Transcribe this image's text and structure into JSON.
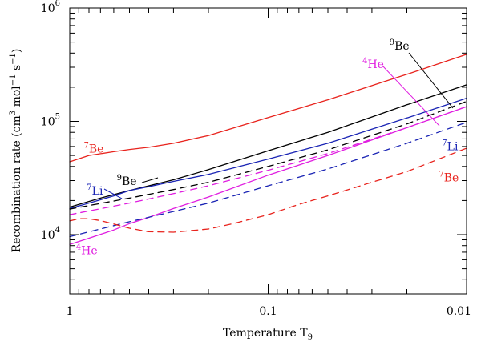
{
  "chart_data": {
    "type": "line",
    "title": "",
    "xlabel": "Temperature T",
    "xlabel_sub": "9",
    "ylabel": "Recombination rate (cm",
    "ylabel_parts": [
      "Recombination rate (cm",
      "3",
      " mol",
      "−1",
      " s",
      "−1",
      ")"
    ],
    "xscale": "log",
    "yscale": "log",
    "x_reversed": true,
    "xlim": [
      1,
      0.01
    ],
    "ylim": [
      3000,
      1000000
    ],
    "x_tick_labels": [
      "1",
      "0.1",
      "0.01"
    ],
    "y_tick_labels": [
      {
        "base": "10",
        "exp": "4"
      },
      {
        "base": "10",
        "exp": "5"
      },
      {
        "base": "10",
        "exp": "6"
      }
    ],
    "colors": {
      "red": "#e8231d",
      "black": "#000000",
      "blue": "#1a24b4",
      "magenta": "#e01ee0"
    },
    "series": [
      {
        "color": "#e8231d",
        "style": "solid",
        "x": [
          1,
          0.8,
          0.6,
          0.5,
          0.4,
          0.3,
          0.2,
          0.1,
          0.05,
          0.02,
          0.01
        ],
        "y": [
          44000,
          50000,
          54000,
          56500,
          59000,
          64000,
          75000,
          108000,
          155000,
          260000,
          390000
        ]
      },
      {
        "color": "#000000",
        "style": "solid",
        "x": [
          1,
          0.7,
          0.5,
          0.3,
          0.2,
          0.1,
          0.05,
          0.02,
          0.01
        ],
        "y": [
          17500,
          21000,
          24500,
          30500,
          37500,
          55000,
          80000,
          140000,
          210000
        ]
      },
      {
        "color": "#1a24b4",
        "style": "solid",
        "x": [
          1,
          0.8,
          0.6,
          0.5,
          0.4,
          0.3,
          0.2,
          0.1,
          0.05,
          0.02,
          0.01
        ],
        "y": [
          17000,
          19000,
          22000,
          24500,
          26500,
          29500,
          34000,
          46500,
          64000,
          107000,
          160000
        ]
      },
      {
        "color": "#e01ee0",
        "style": "solid",
        "x": [
          1,
          0.8,
          0.6,
          0.5,
          0.4,
          0.3,
          0.2,
          0.1,
          0.05,
          0.02,
          0.01
        ],
        "y": [
          8200,
          9300,
          11000,
          12500,
          14200,
          17000,
          21500,
          33500,
          50000,
          88000,
          135000
        ]
      },
      {
        "color": "#000000",
        "style": "dashed",
        "x": [
          1,
          0.5,
          0.3,
          0.2,
          0.1,
          0.05,
          0.02,
          0.01
        ],
        "y": [
          16800,
          21000,
          25000,
          29000,
          40000,
          56000,
          95000,
          150000
        ]
      },
      {
        "color": "#e01ee0",
        "style": "dashed",
        "x": [
          1,
          0.5,
          0.3,
          0.2,
          0.1,
          0.05,
          0.02,
          0.01
        ],
        "y": [
          15000,
          19000,
          23000,
          27000,
          37000,
          52000,
          88000,
          135000
        ]
      },
      {
        "color": "#1a24b4",
        "style": "dashed",
        "x": [
          1,
          0.5,
          0.3,
          0.2,
          0.1,
          0.05,
          0.02,
          0.01
        ],
        "y": [
          9600,
          13000,
          16000,
          19000,
          27000,
          38000,
          64000,
          98000
        ]
      },
      {
        "color": "#e8231d",
        "style": "dashed",
        "x": [
          1,
          0.9,
          0.8,
          0.7,
          0.6,
          0.5,
          0.4,
          0.3,
          0.2,
          0.15,
          0.1,
          0.07,
          0.05,
          0.03,
          0.02,
          0.01
        ],
        "y": [
          13200,
          13800,
          13800,
          13300,
          12400,
          11400,
          10600,
          10500,
          11200,
          12500,
          15000,
          18500,
          22000,
          29000,
          36000,
          58000
        ]
      }
    ],
    "annotations": [
      {
        "text": "Be",
        "isotope": "7",
        "color": "#e8231d",
        "x": 0.85,
        "y": 53000
      },
      {
        "text": "Be",
        "isotope": "9",
        "color": "#000000",
        "x": 0.58,
        "y": 27500
      },
      {
        "text": "Li",
        "isotope": "7",
        "color": "#1a24b4",
        "x": 0.82,
        "y": 22500
      },
      {
        "text": "He",
        "isotope": "4",
        "color": "#e01ee0",
        "x": 0.93,
        "y": 6700
      },
      {
        "text": "Be",
        "isotope": "9",
        "color": "#000000",
        "x": 0.0245,
        "y": 430000
      },
      {
        "text": "He",
        "isotope": "4",
        "color": "#e01ee0",
        "x": 0.0335,
        "y": 295000
      },
      {
        "text": "Li",
        "isotope": "7",
        "color": "#1a24b4",
        "x": 0.0133,
        "y": 55500
      },
      {
        "text": "Be",
        "isotope": "7",
        "color": "#e8231d",
        "x": 0.0138,
        "y": 29500
      }
    ]
  }
}
